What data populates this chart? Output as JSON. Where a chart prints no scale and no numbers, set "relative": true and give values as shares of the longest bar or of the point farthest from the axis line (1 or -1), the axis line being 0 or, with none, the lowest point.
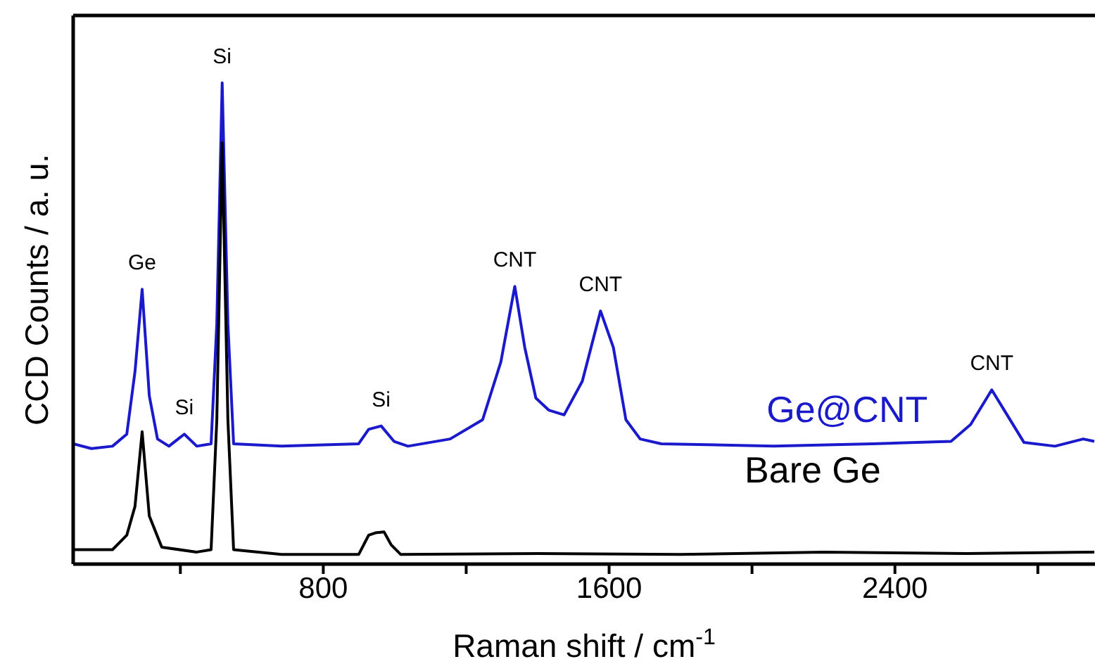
{
  "chart_data": {
    "type": "line",
    "relative": true,
    "xlabel": "Raman shift / cm$^{-1}$",
    "ylabel": "CCD Counts / a. u.",
    "xlim": [
      100,
      2960
    ],
    "xticks": [
      {
        "value": 400,
        "label": null
      },
      800,
      {
        "value": 1200,
        "label": null
      },
      1600,
      {
        "value": 2000,
        "label": null
      },
      2400,
      {
        "value": 2800,
        "label": null
      }
    ],
    "grid": false,
    "legend": false,
    "marker": "none",
    "line_style": "solid",
    "series": [
      {
        "name": "Ge@CNT",
        "color": "#1a1acc",
        "x": [
          100,
          151,
          210,
          250,
          273,
          293,
          313,
          336,
          368,
          411,
          446,
          486,
          502,
          517,
          533,
          549,
          683,
          899,
          927,
          962,
          998,
          1037,
          1155,
          1246,
          1297,
          1336,
          1364,
          1395,
          1431,
          1474,
          1525,
          1576,
          1612,
          1647,
          1687,
          1746,
          2061,
          2336,
          2557,
          2612,
          2671,
          2714,
          2761,
          2848,
          2927,
          2958
        ],
        "values": [
          0.25,
          0.24,
          0.245,
          0.27,
          0.4,
          0.571,
          0.35,
          0.26,
          0.245,
          0.27,
          0.245,
          0.25,
          0.5,
          1.0,
          0.5,
          0.25,
          0.245,
          0.25,
          0.28,
          0.287,
          0.255,
          0.245,
          0.26,
          0.3,
          0.42,
          0.577,
          0.45,
          0.345,
          0.32,
          0.31,
          0.38,
          0.526,
          0.45,
          0.3,
          0.26,
          0.25,
          0.245,
          0.25,
          0.255,
          0.29,
          0.362,
          0.31,
          0.253,
          0.245,
          0.26,
          0.255
        ]
      },
      {
        "name": "Bare Ge",
        "color": "#000000",
        "x": [
          100,
          210,
          250,
          273,
          293,
          313,
          348,
          446,
          486,
          502,
          517,
          533,
          549,
          683,
          899,
          927,
          946,
          970,
          990,
          1017,
          1400,
          1800,
          2200,
          2600,
          2958
        ],
        "values": [
          0.03,
          0.03,
          0.06,
          0.12,
          0.275,
          0.1,
          0.035,
          0.025,
          0.03,
          0.3,
          0.875,
          0.3,
          0.03,
          0.02,
          0.02,
          0.06,
          0.065,
          0.067,
          0.04,
          0.02,
          0.022,
          0.02,
          0.025,
          0.022,
          0.025
        ]
      }
    ],
    "annotations": [
      {
        "text": "Ge",
        "x": 293,
        "y": 0.571
      },
      {
        "text": "Si",
        "x": 411,
        "y": 0.27
      },
      {
        "text": "Si",
        "x": 517,
        "y": 1.0
      },
      {
        "text": "Si",
        "x": 962,
        "y": 0.287
      },
      {
        "text": "CNT",
        "x": 1336,
        "y": 0.577
      },
      {
        "text": "CNT",
        "x": 1576,
        "y": 0.526
      },
      {
        "text": "CNT",
        "x": 2671,
        "y": 0.362
      }
    ]
  }
}
